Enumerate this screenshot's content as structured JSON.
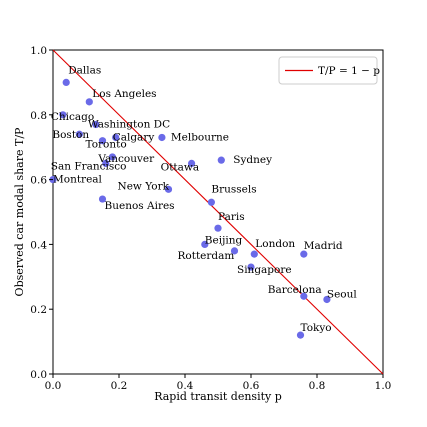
{
  "chart_data": {
    "type": "scatter",
    "xlabel": "Rapid transit density p",
    "ylabel": "Observed car modal share T/P",
    "xlim": [
      0.0,
      1.0
    ],
    "ylim": [
      0.0,
      1.0
    ],
    "xticks": [
      "0.0",
      "0.2",
      "0.4",
      "0.6",
      "0.8",
      "1.0"
    ],
    "yticks": [
      "0.0",
      "0.2",
      "0.4",
      "0.6",
      "0.8",
      "1.0"
    ],
    "grid": false,
    "legend": {
      "placement": "top-right",
      "entries": [
        {
          "label": "T/P = 1 − p",
          "color": "#e00000"
        }
      ]
    },
    "reference_line": {
      "from": [
        0.0,
        1.0
      ],
      "to": [
        1.0,
        0.0
      ],
      "color": "#e00000"
    },
    "point_color": "#6a6ae8",
    "points": [
      {
        "label": "Dallas",
        "x": 0.04,
        "y": 0.9
      },
      {
        "label": "Los Angeles",
        "x": 0.11,
        "y": 0.84
      },
      {
        "label": "Chicago",
        "x": 0.03,
        "y": 0.8
      },
      {
        "label": "Washington DC",
        "x": 0.13,
        "y": 0.77
      },
      {
        "label": "Boston",
        "x": 0.08,
        "y": 0.74
      },
      {
        "label": "Calgary",
        "x": 0.19,
        "y": 0.73
      },
      {
        "label": "Toronto",
        "x": 0.15,
        "y": 0.72
      },
      {
        "label": "Melbourne",
        "x": 0.33,
        "y": 0.73
      },
      {
        "label": "Vancouver",
        "x": 0.18,
        "y": 0.67
      },
      {
        "label": "San Francisco",
        "x": 0.16,
        "y": 0.65
      },
      {
        "label": "Ottawa",
        "x": 0.42,
        "y": 0.65
      },
      {
        "label": "Sydney",
        "x": 0.51,
        "y": 0.66
      },
      {
        "label": "Montreal",
        "x": 0.0,
        "y": 0.6
      },
      {
        "label": "New York",
        "x": 0.35,
        "y": 0.57
      },
      {
        "label": "Brussels",
        "x": 0.48,
        "y": 0.53
      },
      {
        "label": "Buenos Aires",
        "x": 0.15,
        "y": 0.54
      },
      {
        "label": "Paris",
        "x": 0.5,
        "y": 0.45
      },
      {
        "label": "Beijing",
        "x": 0.46,
        "y": 0.4
      },
      {
        "label": "Rotterdam",
        "x": 0.55,
        "y": 0.38
      },
      {
        "label": "London",
        "x": 0.61,
        "y": 0.37
      },
      {
        "label": "Madrid",
        "x": 0.76,
        "y": 0.37
      },
      {
        "label": "Singapore",
        "x": 0.6,
        "y": 0.33
      },
      {
        "label": "Barcelona",
        "x": 0.76,
        "y": 0.24
      },
      {
        "label": "Seoul",
        "x": 0.83,
        "y": 0.23
      },
      {
        "label": "Tokyo",
        "x": 0.75,
        "y": 0.12
      }
    ]
  }
}
